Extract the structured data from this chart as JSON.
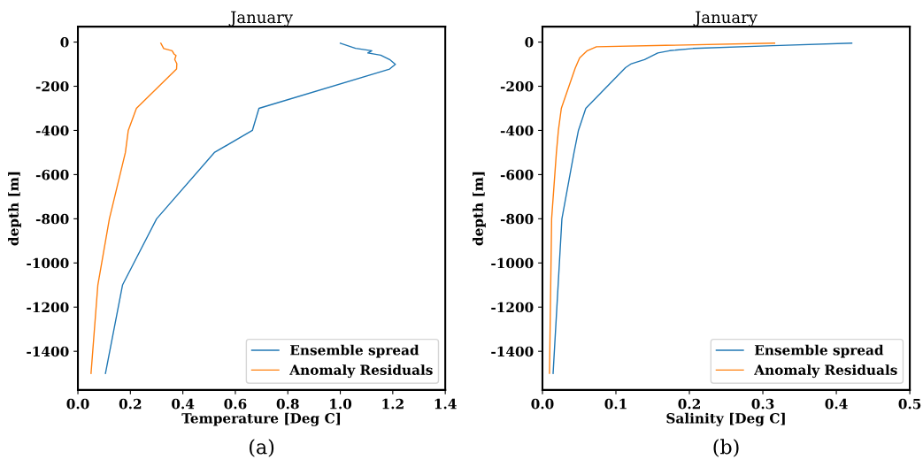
{
  "chart_data": [
    {
      "type": "line",
      "title": "January",
      "xlabel": "Temperature [Deg C]",
      "ylabel": "depth [m]",
      "annotations": [
        "(a)"
      ],
      "legend": "lower right",
      "grid": false,
      "xlim": [
        0,
        1.4
      ],
      "xticks": [
        {
          "value": 0,
          "label": "0.0"
        },
        {
          "value": 0.2,
          "label": "0.2"
        },
        {
          "value": 0.4,
          "label": "0.4"
        },
        {
          "value": 0.6,
          "label": "0.6"
        },
        {
          "value": 0.8,
          "label": "0.8"
        },
        {
          "value": 1.0,
          "label": "1.0"
        },
        {
          "value": 1.2,
          "label": "1.2"
        },
        {
          "value": 1.4,
          "label": "1.4"
        }
      ],
      "ylim": [
        -1575,
        70
      ],
      "yticks": [
        0,
        -200,
        -400,
        -600,
        -800,
        -1000,
        -1200,
        -1400
      ],
      "series": [
        {
          "name": "Ensemble spread",
          "color": "#1f77b4",
          "x": [
            1.0,
            1.058,
            1.12,
            1.105,
            1.154,
            1.188,
            1.21,
            1.188,
            0.69,
            0.665,
            0.52,
            0.3,
            0.17,
            0.105
          ],
          "values": [
            -5,
            -28,
            -39,
            -49,
            -59,
            -79,
            -101,
            -122,
            -300,
            -400,
            -500,
            -800,
            -1100,
            -1500
          ]
        },
        {
          "name": "Anomaly Residuals",
          "color": "#ff7f0e",
          "x": [
            0.316,
            0.327,
            0.359,
            0.367,
            0.374,
            0.369,
            0.377,
            0.376,
            0.223,
            0.192,
            0.181,
            0.12,
            0.076,
            0.05
          ],
          "values": [
            -5,
            -29,
            -39,
            -55,
            -61,
            -79,
            -98,
            -122,
            -300,
            -400,
            -500,
            -800,
            -1100,
            -1500
          ]
        }
      ]
    },
    {
      "type": "line",
      "title": "January",
      "xlabel": "Salinity [Deg C]",
      "ylabel": "depth [m]",
      "annotations": [
        "(b)"
      ],
      "legend": "lower right",
      "grid": false,
      "xlim": [
        0,
        0.5
      ],
      "xticks": [
        {
          "value": 0,
          "label": "0.0"
        },
        {
          "value": 0.1,
          "label": "0.1"
        },
        {
          "value": 0.2,
          "label": "0.2"
        },
        {
          "value": 0.3,
          "label": "0.3"
        },
        {
          "value": 0.4,
          "label": "0.4"
        },
        {
          "value": 0.5,
          "label": "0.5"
        }
      ],
      "ylim": [
        -1575,
        70
      ],
      "yticks": [
        0,
        -200,
        -400,
        -600,
        -800,
        -1000,
        -1200,
        -1400
      ],
      "series": [
        {
          "name": "Ensemble spread",
          "color": "#1f77b4",
          "x": [
            0.421,
            0.314,
            0.205,
            0.173,
            0.157,
            0.139,
            0.121,
            0.113,
            0.059,
            0.049,
            0.043,
            0.0265,
            0.0145
          ],
          "values": [
            -5,
            -16,
            -29,
            -39,
            -49,
            -79,
            -98,
            -116,
            -300,
            -400,
            -500,
            -800,
            -1500
          ]
        },
        {
          "name": "Anomaly Residuals",
          "color": "#ff7f0e",
          "x": [
            0.316,
            0.0735,
            0.061,
            0.0506,
            0.0446,
            0.0257,
            0.0217,
            0.019,
            0.0125,
            0.0096
          ],
          "values": [
            -5,
            -21,
            -39,
            -72,
            -118,
            -300,
            -400,
            -500,
            -800,
            -1500
          ]
        }
      ]
    }
  ]
}
